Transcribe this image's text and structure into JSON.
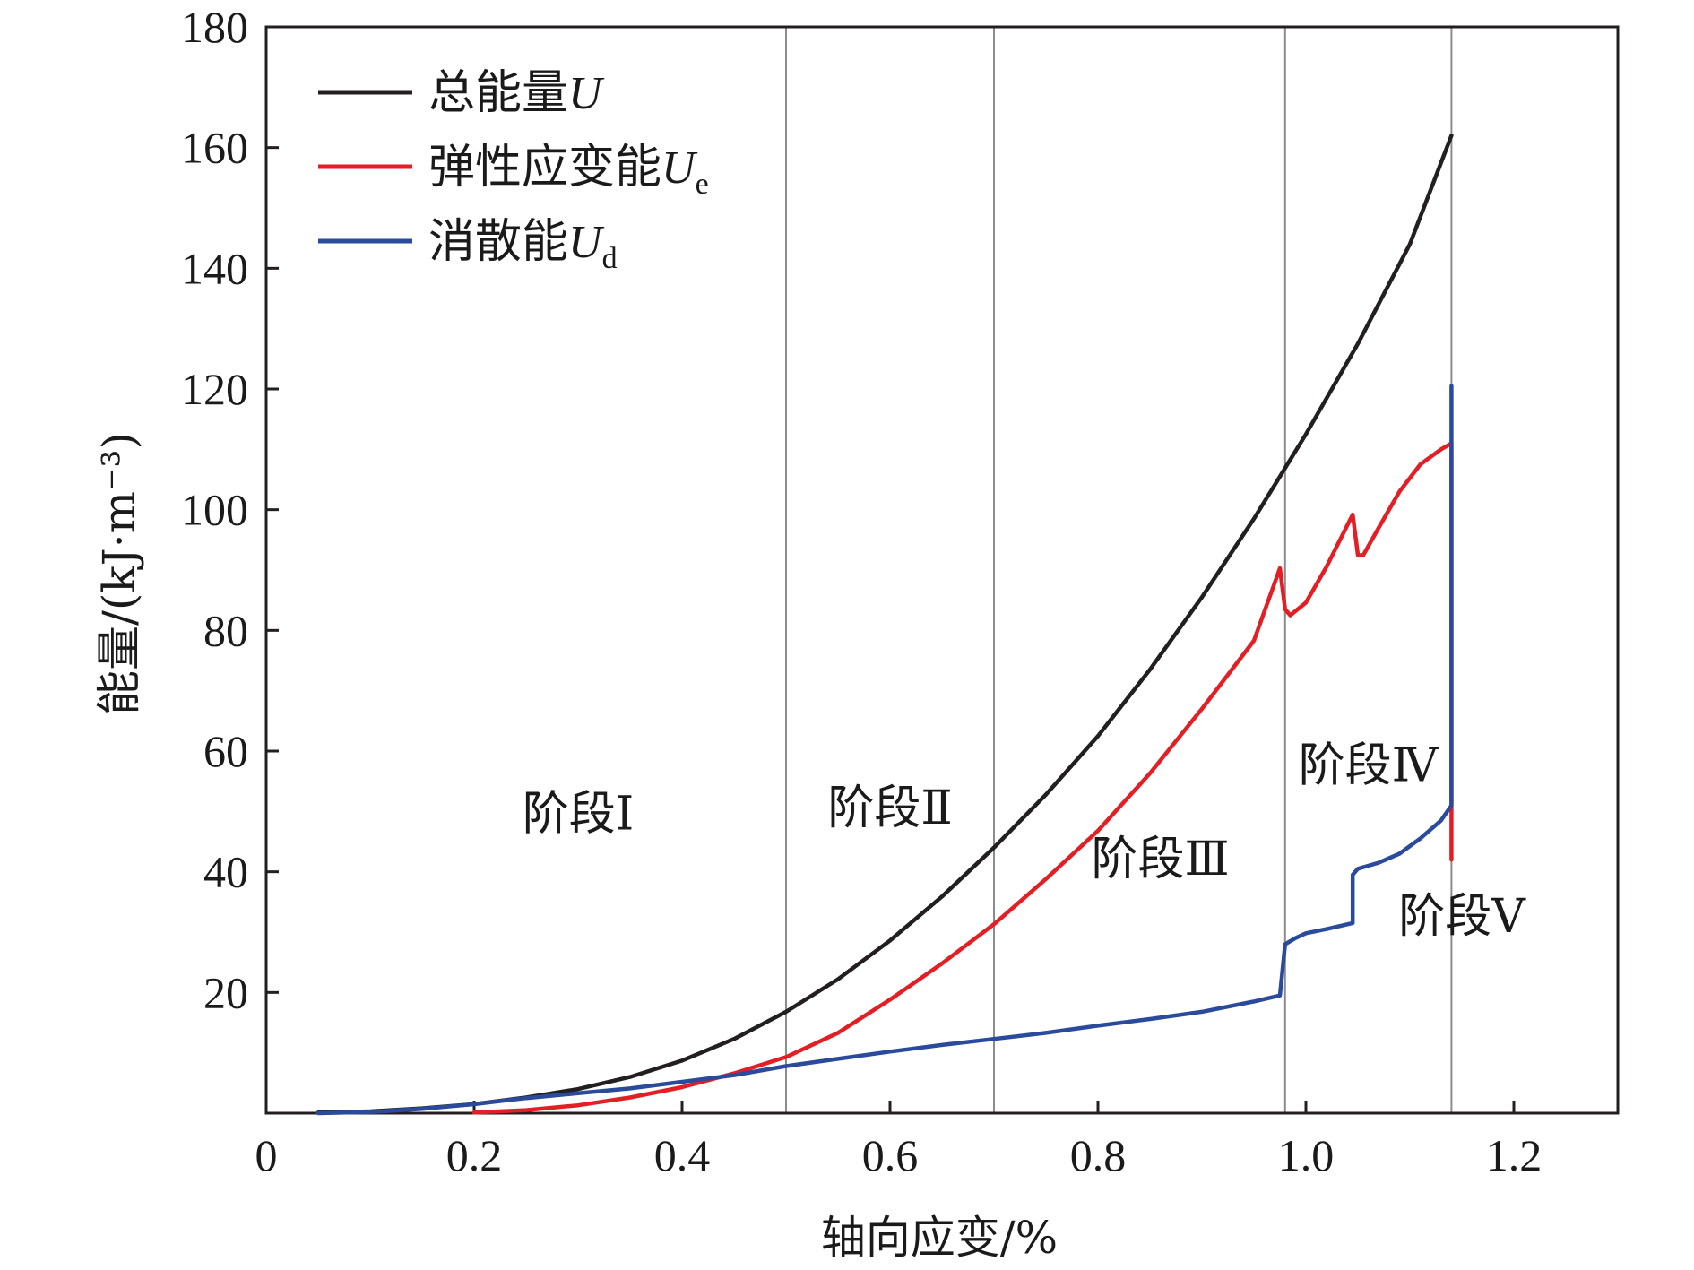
{
  "chart_data": {
    "type": "line",
    "xlabel": "轴向应变/%",
    "ylabel": "能量/(kJ·m⁻³)",
    "xlim": [
      0,
      1.3
    ],
    "ylim": [
      0,
      180
    ],
    "x_ticks": [
      0,
      0.2,
      0.4,
      0.6,
      0.8,
      1.0,
      1.2
    ],
    "x_tick_labels": [
      "0",
      "0.2",
      "0.4",
      "0.6",
      "0.8",
      "1.0",
      "1.2"
    ],
    "y_ticks": [
      20,
      40,
      60,
      80,
      100,
      120,
      140,
      160,
      180
    ],
    "y_tick_labels": [
      "20",
      "40",
      "60",
      "80",
      "100",
      "120",
      "140",
      "160",
      "180"
    ],
    "stage_boundaries": [
      0.5,
      0.7,
      0.98,
      1.14
    ],
    "legend_position": "top-left",
    "series": [
      {
        "name": "总能量U",
        "label": "总能量",
        "symbol": "U",
        "subscript": "",
        "color": "#231f20",
        "x": [
          0.05,
          0.1,
          0.15,
          0.2,
          0.25,
          0.3,
          0.35,
          0.4,
          0.45,
          0.5,
          0.55,
          0.6,
          0.65,
          0.7,
          0.75,
          0.8,
          0.85,
          0.9,
          0.95,
          1.0,
          1.05,
          1.1,
          1.14
        ],
        "values": [
          0.1,
          0.3,
          0.8,
          1.5,
          2.6,
          4.0,
          6.0,
          8.7,
          12.3,
          16.8,
          22.2,
          28.6,
          35.9,
          44.0,
          52.8,
          62.5,
          73.5,
          85.5,
          98.5,
          112.5,
          127.5,
          144.0,
          162.0
        ]
      },
      {
        "name": "弹性应变能Ue",
        "label": "弹性应变能",
        "symbol": "U",
        "subscript": "e",
        "color": "#e31e24",
        "x": [
          0.2,
          0.25,
          0.3,
          0.35,
          0.4,
          0.45,
          0.5,
          0.55,
          0.6,
          0.65,
          0.7,
          0.75,
          0.8,
          0.85,
          0.9,
          0.95,
          0.975,
          0.98,
          0.985,
          1.0,
          1.02,
          1.045,
          1.05,
          1.055,
          1.07,
          1.09,
          1.11,
          1.13,
          1.14,
          1.14
        ],
        "values": [
          0.1,
          0.5,
          1.3,
          2.6,
          4.3,
          6.6,
          9.3,
          13.3,
          18.8,
          24.8,
          31.3,
          38.8,
          46.8,
          56.3,
          67.0,
          78.3,
          90.3,
          83.5,
          82.5,
          84.6,
          90.6,
          99.2,
          92.5,
          92.4,
          97.0,
          103.0,
          107.5,
          110.0,
          111.0,
          42.0
        ]
      },
      {
        "name": "消散能Ud",
        "label": "消散能",
        "symbol": "U",
        "subscript": "d",
        "color": "#2a4b9b",
        "x": [
          0.05,
          0.1,
          0.15,
          0.2,
          0.25,
          0.3,
          0.35,
          0.4,
          0.45,
          0.5,
          0.55,
          0.6,
          0.65,
          0.7,
          0.75,
          0.8,
          0.85,
          0.9,
          0.95,
          0.975,
          0.98,
          0.99,
          1.0,
          1.02,
          1.045,
          1.045,
          1.05,
          1.07,
          1.09,
          1.11,
          1.13,
          1.14,
          1.14
        ],
        "values": [
          0.0,
          0.2,
          0.7,
          1.5,
          2.5,
          3.3,
          4.1,
          5.2,
          6.3,
          7.8,
          9.0,
          10.2,
          11.3,
          12.3,
          13.3,
          14.5,
          15.6,
          16.8,
          18.5,
          19.5,
          28.0,
          29.0,
          29.8,
          30.5,
          31.5,
          39.5,
          40.5,
          41.5,
          43.0,
          45.5,
          48.5,
          51.0,
          120.5
        ]
      }
    ],
    "annotations": [
      {
        "text": "阶段Ⅰ",
        "x": 0.3,
        "y": 47
      },
      {
        "text": "阶段Ⅱ",
        "x": 0.6,
        "y": 48
      },
      {
        "text": "阶段Ⅲ",
        "x": 0.86,
        "y": 39.5
      },
      {
        "text": "阶段Ⅳ",
        "x": 1.06,
        "y": 55
      },
      {
        "text": "阶段Ⅴ",
        "x": 1.15,
        "y": 30
      }
    ]
  }
}
